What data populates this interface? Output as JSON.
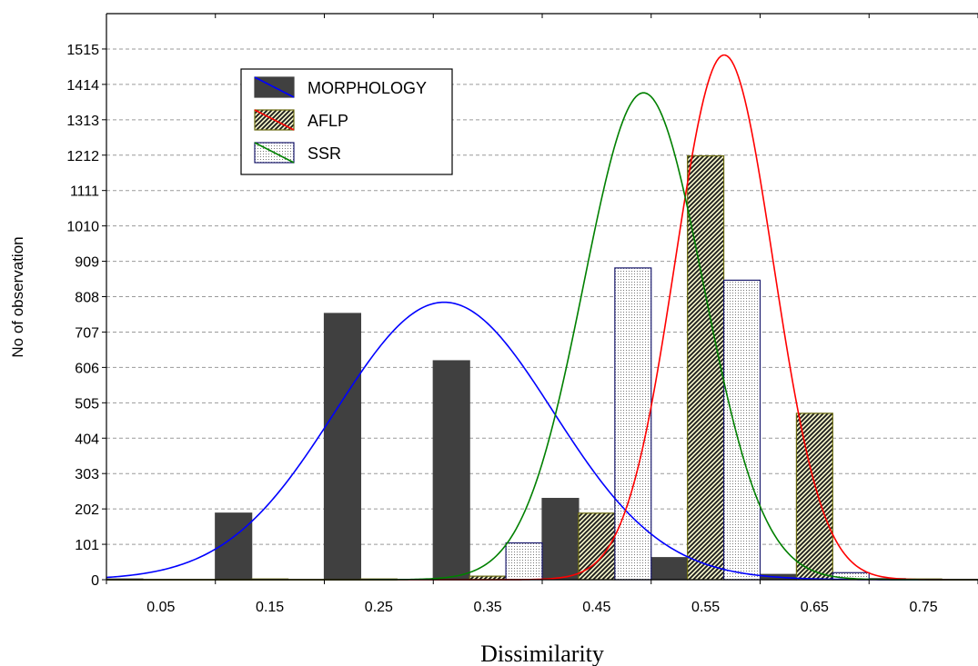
{
  "chart_data": {
    "type": "bar",
    "xlabel": "Dissimilarity",
    "ylabel": "No of observation",
    "x_ticks": [
      "0.05",
      "0.15",
      "0.25",
      "0.35",
      "0.45",
      "0.55",
      "0.65",
      "0.75"
    ],
    "y_ticks": [
      0,
      101,
      202,
      303,
      404,
      505,
      606,
      707,
      808,
      909,
      1010,
      1111,
      1212,
      1313,
      1414,
      1515
    ],
    "xlim": [
      0,
      0.8
    ],
    "ylim": [
      0,
      1616
    ],
    "grid": "horizontal-dashed",
    "legend_position": "top-left",
    "bin_edges": [
      0.0,
      0.1,
      0.2,
      0.3,
      0.4,
      0.5,
      0.6,
      0.7,
      0.8
    ],
    "series": [
      {
        "name": "MORPHOLOGY",
        "style": "solid-dark",
        "bar_color": "#404040",
        "curve_color": "#0000ff",
        "values": [
          2,
          190,
          760,
          625,
          232,
          63,
          15,
          3
        ],
        "normal_curve": {
          "mean": 0.31,
          "sd": 0.1,
          "peak": 792
        }
      },
      {
        "name": "AFLP",
        "style": "diagonal-hatch",
        "bar_color": "#6b6b10",
        "curve_color": "#ff0000",
        "values": [
          0,
          2,
          2,
          10,
          190,
          1210,
          475,
          2
        ],
        "normal_curve": {
          "mean": 0.567,
          "sd": 0.045,
          "peak": 1498
        }
      },
      {
        "name": "SSR",
        "style": "dotted",
        "bar_color": "#1a1a6e",
        "curve_color": "#008000",
        "values": [
          0,
          0,
          0,
          105,
          890,
          855,
          20,
          0
        ],
        "normal_curve": {
          "mean": 0.493,
          "sd": 0.055,
          "peak": 1390
        }
      }
    ]
  }
}
